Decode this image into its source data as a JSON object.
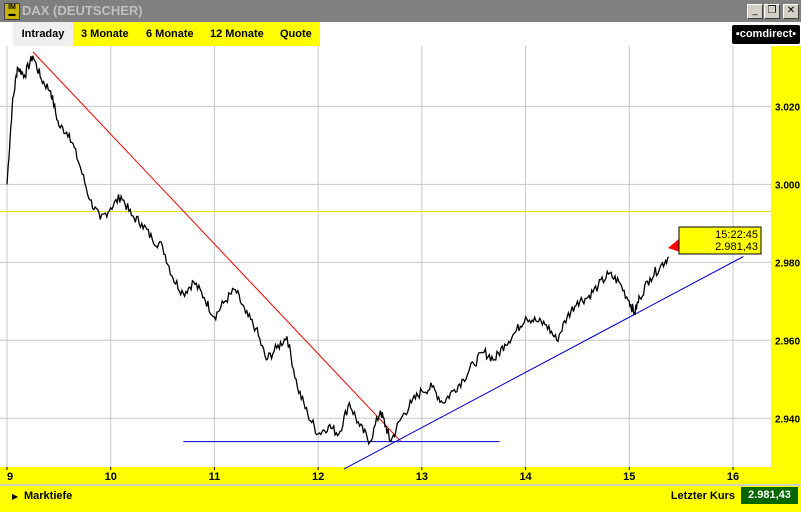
{
  "window": {
    "title": "DAX (DEUTSCHER)",
    "icon": "app-icon",
    "minimize": "_",
    "restore": "❐",
    "close": "✕"
  },
  "tabs": [
    {
      "label": "Intraday",
      "active": true
    },
    {
      "label": "3 Monate"
    },
    {
      "label": "6 Monate"
    },
    {
      "label": "12 Monate"
    },
    {
      "label": "Quote"
    }
  ],
  "brand": {
    "logo_text": "▪comdirect▪"
  },
  "status": {
    "left_label": "Marktiefe",
    "right_label": "Letzter Kurs",
    "last_price": "2.981,43"
  },
  "tooltip": {
    "time": "15:22:45",
    "price": "2.981,43"
  },
  "colors": {
    "accent": "#ffff00",
    "price_line": "#000000",
    "downtrend": "#ff0000",
    "uptrend": "#0000cc",
    "reference": "#e0e000",
    "last_price_bg": "#006600"
  },
  "chart_data": {
    "type": "line",
    "x": [
      9.0,
      9.05,
      9.1,
      9.17,
      9.25,
      9.33,
      9.42,
      9.5,
      9.6,
      9.7,
      9.8,
      9.9,
      10.0,
      10.1,
      10.2,
      10.3,
      10.4,
      10.5,
      10.6,
      10.7,
      10.8,
      10.9,
      11.0,
      11.1,
      11.2,
      11.3,
      11.4,
      11.5,
      11.6,
      11.7,
      11.8,
      11.9,
      12.0,
      12.1,
      12.2,
      12.3,
      12.4,
      12.5,
      12.6,
      12.65,
      12.7,
      12.8,
      12.9,
      13.0,
      13.1,
      13.2,
      13.3,
      13.4,
      13.5,
      13.6,
      13.7,
      13.8,
      13.9,
      14.0,
      14.1,
      14.2,
      14.3,
      14.4,
      14.5,
      14.6,
      14.7,
      14.8,
      14.9,
      15.0,
      15.05,
      15.1,
      15.2,
      15.3,
      15.38
    ],
    "y": [
      3000,
      3020,
      3030,
      3028,
      3033,
      3027,
      3024,
      3015,
      3013,
      3005,
      2996,
      2991,
      2994,
      2997,
      2992,
      2990,
      2986,
      2984,
      2976,
      2972,
      2975,
      2971,
      2966,
      2970,
      2973,
      2967,
      2963,
      2955,
      2958,
      2961,
      2948,
      2941,
      2936,
      2938,
      2936,
      2944,
      2938,
      2934,
      2942,
      2938,
      2934,
      2940,
      2944,
      2947,
      2948,
      2944,
      2947,
      2950,
      2954,
      2957,
      2955,
      2959,
      2962,
      2966,
      2965,
      2964,
      2960,
      2966,
      2970,
      2971,
      2974,
      2977,
      2975,
      2970,
      2967,
      2971,
      2976,
      2979,
      2981.43
    ],
    "xticks": [
      "9",
      "10",
      "11",
      "12",
      "13",
      "14",
      "15",
      "16"
    ],
    "xlim": [
      9,
      16.4
    ],
    "yticks": [
      "2.940",
      "2.960",
      "2.980",
      "3.000",
      "3.020"
    ],
    "ylim": [
      2927.5,
      3035.5
    ],
    "reference_line": 2993,
    "trendlines": [
      {
        "color": "#ff0000",
        "x": [
          9.25,
          12.8
        ],
        "y": [
          3034,
          2934
        ]
      },
      {
        "color": "#0000cc",
        "x": [
          12.25,
          16.1
        ],
        "y": [
          2927,
          2981.5
        ]
      },
      {
        "color": "#0000cc",
        "x": [
          10.7,
          13.75
        ],
        "y": [
          2934,
          2934
        ]
      }
    ],
    "grid": true
  }
}
